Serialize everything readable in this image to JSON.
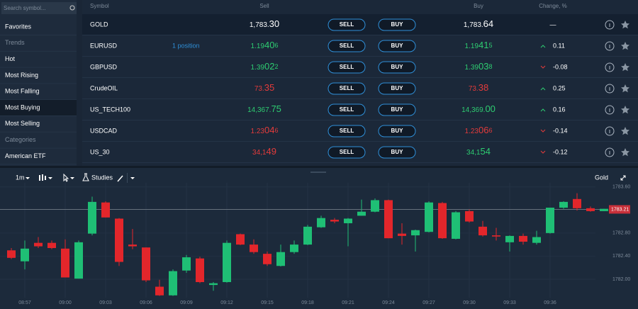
{
  "sidebar": {
    "search": "Search symbol...",
    "items": [
      {
        "label": "Favorites"
      },
      {
        "label": "Trends",
        "section": true
      },
      {
        "label": "Hot"
      },
      {
        "label": "Most Rising"
      },
      {
        "label": "Most Falling"
      },
      {
        "label": "Most Buying",
        "active": true
      },
      {
        "label": "Most Selling"
      },
      {
        "label": "Categories",
        "section": true
      },
      {
        "label": "American ETF"
      }
    ]
  },
  "table": {
    "headers": [
      "Symbol",
      "Sell",
      "Buy",
      "Change, %"
    ],
    "sell_button": "SELL",
    "buy_button": "BUY",
    "rows": [
      {
        "symbol": "GOLD",
        "sell": [
          "1,783.",
          "30"
        ],
        "sell_color": "#ffffff",
        "buy": [
          "1,783.",
          "64"
        ],
        "buy_color": "#ffffff",
        "change": "—"
      },
      {
        "symbol": "EURUSD",
        "position": "1 position",
        "sell": [
          "1.19",
          "40",
          "6"
        ],
        "sell_color": "#2ecc71",
        "buy": [
          "1.19",
          "41",
          "5"
        ],
        "buy_color": "#2ecc71",
        "change": 0.11
      },
      {
        "symbol": "GBPUSD",
        "sell": [
          "1.39",
          "02",
          "2"
        ],
        "sell_color": "#2ecc71",
        "buy": [
          "1.39",
          "03",
          "8"
        ],
        "buy_color": "#2ecc71",
        "change": -0.08
      },
      {
        "symbol": "CrudeOIL",
        "sell": [
          "73.",
          "35"
        ],
        "sell_color": "#e33b3b",
        "buy": [
          "73.",
          "38"
        ],
        "buy_color": "#e33b3b",
        "change": 0.25
      },
      {
        "symbol": "US_TECH100",
        "sell": [
          "14,367.",
          "75"
        ],
        "sell_color": "#2ecc71",
        "buy": [
          "14,369.",
          "00"
        ],
        "buy_color": "#2ecc71",
        "change": 0.16
      },
      {
        "symbol": "USDCAD",
        "sell": [
          "1.23",
          "04",
          "6"
        ],
        "sell_color": "#e33b3b",
        "buy": [
          "1.23",
          "06",
          "6"
        ],
        "buy_color": "#e33b3b",
        "change": -0.14
      },
      {
        "symbol": "US_30",
        "sell": [
          "34,1",
          "49"
        ],
        "sell_color": "#e33b3b",
        "buy": [
          "34,1",
          "54"
        ],
        "buy_color": "#2ecc71",
        "change": -0.12
      }
    ]
  },
  "toolbar": {
    "interval": "1m",
    "studies": "Studies",
    "symbol": "Gold"
  },
  "chart_data": {
    "type": "candlestick",
    "up_color": "#1fbf75",
    "down_color": "#e3262b",
    "categories": [
      null,
      "08:57",
      null,
      null,
      "09:00",
      null,
      null,
      "09:03",
      null,
      null,
      "09:06",
      null,
      null,
      "09:09",
      null,
      null,
      "09:12",
      null,
      null,
      "09:15",
      null,
      null,
      "09:18",
      null,
      null,
      "09:21",
      null,
      null,
      "09:24",
      null,
      null,
      "09:27",
      null,
      null,
      "09:30",
      null,
      null,
      "09:33",
      null,
      null,
      "09:36",
      null,
      null,
      null,
      null
    ],
    "open": [
      1782.5,
      1782.31,
      1782.63,
      1782.63,
      1782.53,
      1782.01,
      1782.79,
      1783.33,
      1783.05,
      1782.6,
      1782.55,
      1781.87,
      1781.72,
      1782.15,
      1782.36,
      1781.9,
      1781.95,
      1782.78,
      1782.6,
      1782.44,
      1782.23,
      1782.47,
      1782.6,
      1782.9,
      1783.03,
      1782.97,
      1783.1,
      1783.17,
      1783.37,
      1782.79,
      1782.76,
      1782.82,
      1783.32,
      1782.7,
      1783.18,
      1782.91,
      1782.76,
      1782.64,
      1782.75,
      1782.63,
      1782.8,
      1783.24,
      1783.39,
      1783.23,
      1783.18
    ],
    "high": [
      1782.54,
      1782.67,
      1782.73,
      1782.67,
      1782.69,
      1782.67,
      1783.43,
      1783.35,
      1783.06,
      1782.87,
      1782.55,
      1781.99,
      1782.17,
      1782.42,
      1782.39,
      1781.95,
      1782.67,
      1782.79,
      1782.69,
      1782.48,
      1782.6,
      1782.67,
      1782.94,
      1783.1,
      1783.06,
      1783.06,
      1783.38,
      1783.4,
      1783.38,
      1782.97,
      1782.86,
      1783.35,
      1783.34,
      1783.18,
      1783.21,
      1783.01,
      1782.89,
      1782.76,
      1782.79,
      1782.84,
      1783.24,
      1783.35,
      1783.49,
      1783.26,
      1783.22
    ],
    "low": [
      1782.35,
      1782.17,
      1782.54,
      1782.52,
      1782.03,
      1782.01,
      1782.76,
      1783.07,
      1782.23,
      1782.52,
      1781.95,
      1781.71,
      1781.71,
      1782.11,
      1781.93,
      1781.8,
      1781.94,
      1782.59,
      1782.44,
      1782.23,
      1782.22,
      1782.44,
      1782.59,
      1782.89,
      1782.97,
      1782.57,
      1783.1,
      1783.16,
      1782.71,
      1782.6,
      1782.48,
      1782.81,
      1782.7,
      1782.69,
      1782.98,
      1782.74,
      1782.67,
      1782.48,
      1782.6,
      1782.6,
      1782.79,
      1783.22,
      1783.19,
      1783.17,
      1783.18
    ],
    "close": [
      1782.37,
      1782.53,
      1782.57,
      1782.54,
      1782.03,
      1782.64,
      1783.34,
      1783.07,
      1782.3,
      1782.57,
      1781.98,
      1781.72,
      1782.14,
      1782.38,
      1781.95,
      1781.93,
      1782.63,
      1782.6,
      1782.47,
      1782.26,
      1782.47,
      1782.6,
      1782.91,
      1783.06,
      1783.0,
      1783.05,
      1783.17,
      1783.37,
      1782.71,
      1782.75,
      1782.85,
      1783.33,
      1782.71,
      1783.16,
      1783.0,
      1782.76,
      1782.74,
      1782.75,
      1782.65,
      1782.73,
      1783.24,
      1783.34,
      1783.23,
      1783.18,
      1783.22
    ],
    "ylim": [
      1781.68,
      1783.67
    ],
    "yticks": [
      {
        "value": 1783.6,
        "label": "1783.60"
      },
      {
        "value": 1782.8,
        "label": "1782.80"
      },
      {
        "value": 1782.4,
        "label": "1782.40"
      },
      {
        "value": 1782.0,
        "label": "1782.00"
      }
    ],
    "current": 1783.21,
    "current_color": "#c8303a",
    "grid": true
  }
}
